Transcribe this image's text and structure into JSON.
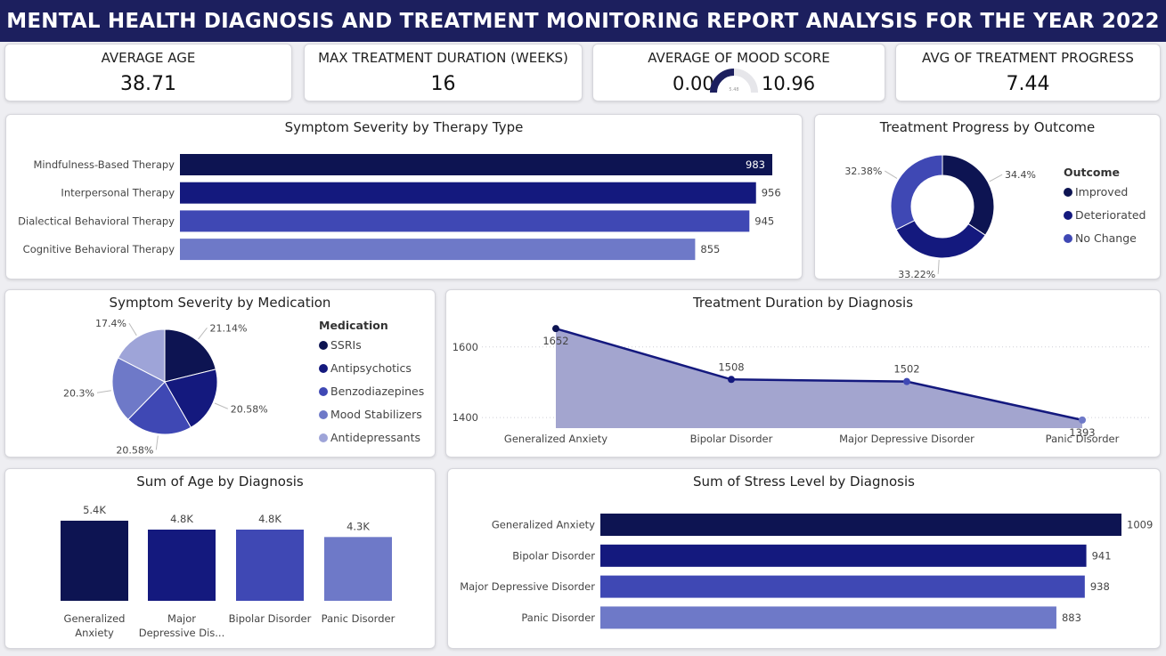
{
  "title": "MENTAL HEALTH DIAGNOSIS AND TREATMENT MONITORING REPORT ANALYSIS FOR THE YEAR 2022",
  "colors": {
    "navy": "#1c1f5e",
    "c1": "#0d1452",
    "c2": "#14197e",
    "c3": "#3f48b4",
    "c4": "#6e79c8",
    "c5": "#9ea4d8",
    "area_fill": "#a3a5cf"
  },
  "kpis": {
    "avg_age": {
      "label": "AVERAGE AGE",
      "value": "38.71"
    },
    "max_duration": {
      "label": "MAX TREATMENT DURATION (WEEKS)",
      "value": "16"
    },
    "mood": {
      "label": "AVERAGE OF MOOD SCORE",
      "min": "0.00",
      "max": "10.96",
      "center": "5.48",
      "fraction": 0.5
    },
    "avg_progress": {
      "label": "AVG OF TREATMENT PROGRESS",
      "value": "7.44"
    }
  },
  "chart_data": [
    {
      "id": "therapy",
      "type": "bar",
      "orientation": "horizontal",
      "title": "Symptom Severity by Therapy Type",
      "categories": [
        "Mindfulness-Based Therapy",
        "Interpersonal Therapy",
        "Dialectical Behavioral Therapy",
        "Cognitive Behavioral Therapy"
      ],
      "values": [
        983,
        956,
        945,
        855
      ],
      "labels": [
        "983",
        "956",
        "945",
        "855"
      ],
      "xlim": [
        0,
        983
      ]
    },
    {
      "id": "outcome",
      "type": "pie",
      "style": "donut",
      "title": "Treatment Progress by Outcome",
      "legend_title": "Outcome",
      "legend_position": "right",
      "categories": [
        "Improved",
        "Deteriorated",
        "No Change"
      ],
      "values": [
        34.4,
        33.22,
        32.38
      ],
      "labels": [
        "34.4%",
        "33.22%",
        "32.38%"
      ]
    },
    {
      "id": "medication",
      "type": "pie",
      "title": "Symptom Severity by Medication",
      "legend_title": "Medication",
      "legend_position": "right",
      "categories": [
        "SSRIs",
        "Antipsychotics",
        "Benzodiazepines",
        "Mood Stabilizers",
        "Antidepressants"
      ],
      "values": [
        21.14,
        20.58,
        20.58,
        20.3,
        17.4
      ],
      "labels": [
        "21.14%",
        "20.58%",
        "20.58%",
        "20.3%",
        "17.4%"
      ]
    },
    {
      "id": "duration",
      "type": "area",
      "title": "Treatment Duration by Diagnosis",
      "categories": [
        "Generalized Anxiety",
        "Bipolar Disorder",
        "Major Depressive Disorder",
        "Panic Disorder"
      ],
      "values": [
        1652,
        1508,
        1502,
        1393
      ],
      "labels": [
        "1652",
        "1508",
        "1502",
        "1393"
      ],
      "yticks": [
        "1600",
        "1400"
      ],
      "ylim": [
        1370,
        1660
      ]
    },
    {
      "id": "age",
      "type": "bar",
      "orientation": "vertical",
      "title": "Sum of Age by Diagnosis",
      "categories": [
        "Generalized Anxiety",
        "Major Depressive Dis...",
        "Bipolar Disorder",
        "Panic Disorder"
      ],
      "values": [
        5400,
        4800,
        4800,
        4300
      ],
      "labels": [
        "5.4K",
        "4.8K",
        "4.8K",
        "4.3K"
      ],
      "ylim": [
        0,
        5400
      ]
    },
    {
      "id": "stress",
      "type": "bar",
      "orientation": "horizontal",
      "title": "Sum of Stress Level by Diagnosis",
      "categories": [
        "Generalized Anxiety",
        "Bipolar Disorder",
        "Major Depressive Disorder",
        "Panic Disorder"
      ],
      "values": [
        1009,
        941,
        938,
        883
      ],
      "labels": [
        "1009",
        "941",
        "938",
        "883"
      ],
      "xlim": [
        0,
        1009
      ]
    }
  ]
}
